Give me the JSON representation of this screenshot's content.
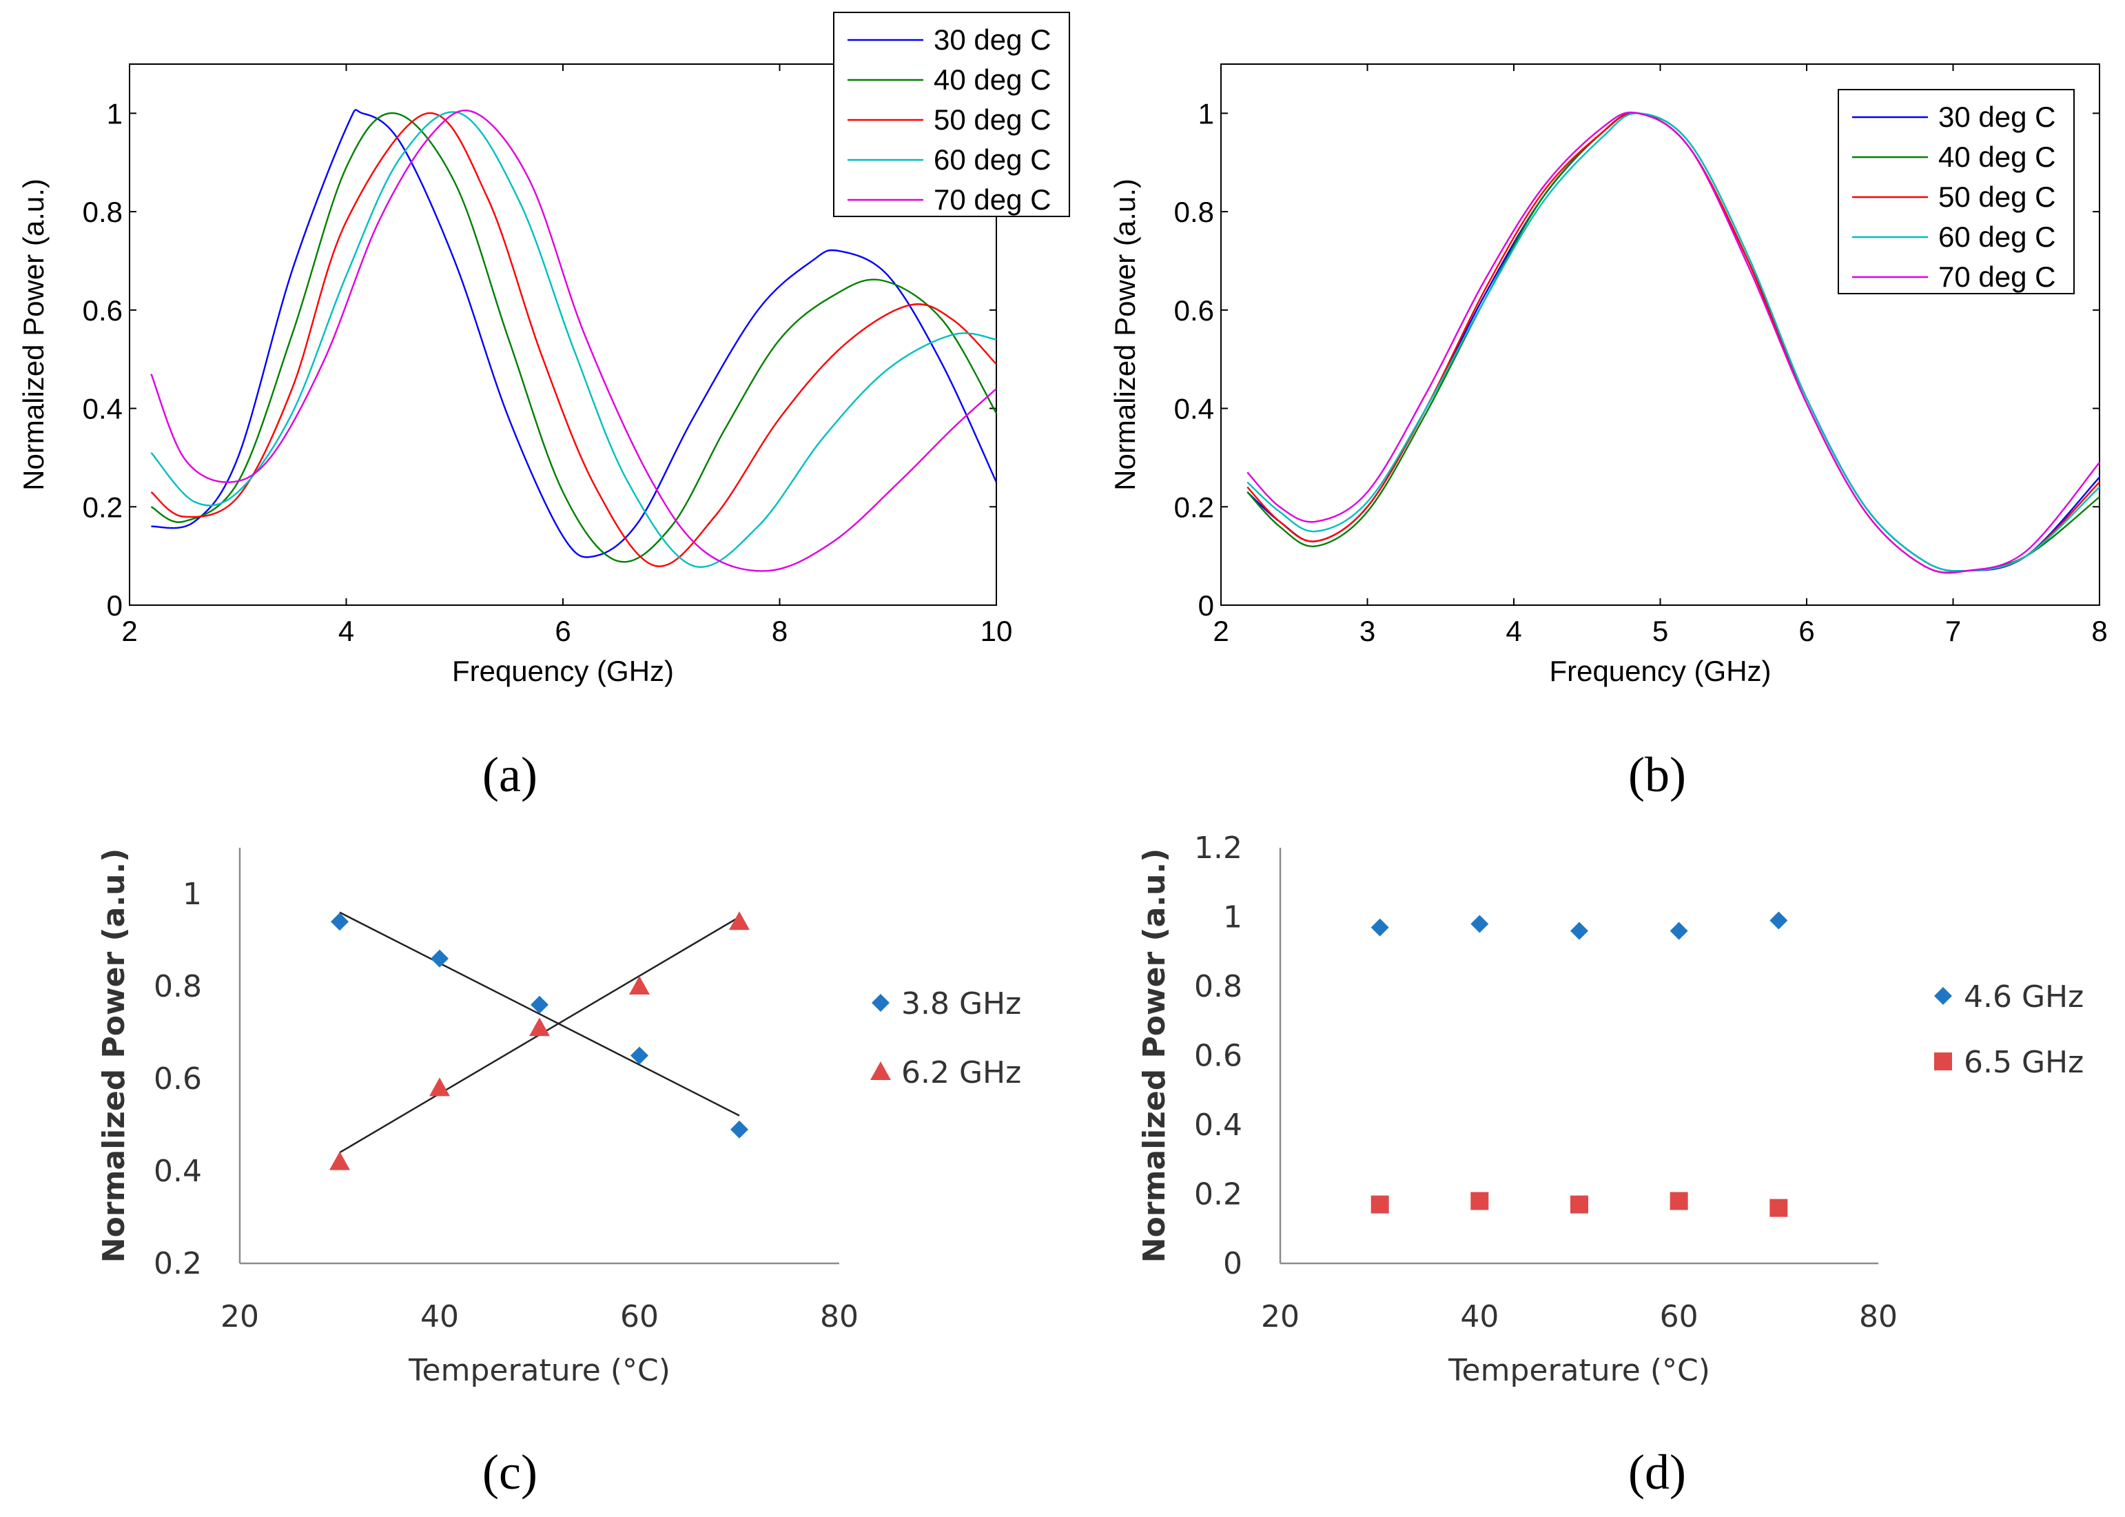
{
  "captions": [
    "(a)",
    "(b)",
    "(c)",
    "(d)"
  ],
  "chart_data": [
    {
      "id": "a",
      "type": "line",
      "title": "",
      "xlabel": "Frequency (GHz)",
      "ylabel": "Normalized Power (a.u.)",
      "xlim": [
        2,
        10
      ],
      "ylim": [
        0,
        1.1
      ],
      "xticks": [
        2,
        4,
        6,
        8,
        10
      ],
      "yticks": [
        0,
        0.2,
        0.4,
        0.6,
        0.8,
        1
      ],
      "legend_position": "top-right",
      "series": [
        {
          "name": "30 deg C",
          "color": "#0000ff",
          "x": [
            2.2,
            2.6,
            3.0,
            3.5,
            4.0,
            4.15,
            4.5,
            5.0,
            5.5,
            6.0,
            6.3,
            6.7,
            7.2,
            7.8,
            8.3,
            8.55,
            9.0,
            9.5,
            10.0
          ],
          "y": [
            0.16,
            0.17,
            0.3,
            0.68,
            0.97,
            1.0,
            0.94,
            0.7,
            0.38,
            0.14,
            0.1,
            0.17,
            0.38,
            0.6,
            0.7,
            0.72,
            0.67,
            0.49,
            0.25
          ]
        },
        {
          "name": "40 deg C",
          "color": "#008000",
          "x": [
            2.2,
            2.5,
            3.0,
            3.5,
            4.0,
            4.45,
            5.0,
            5.5,
            6.0,
            6.5,
            7.0,
            7.5,
            8.0,
            8.5,
            8.95,
            9.5,
            10.0
          ],
          "y": [
            0.2,
            0.17,
            0.25,
            0.55,
            0.89,
            1.0,
            0.86,
            0.54,
            0.23,
            0.09,
            0.16,
            0.36,
            0.54,
            0.63,
            0.66,
            0.58,
            0.39
          ]
        },
        {
          "name": "50 deg C",
          "color": "#ff0000",
          "x": [
            2.2,
            2.5,
            3.0,
            3.5,
            4.0,
            4.75,
            5.3,
            5.8,
            6.3,
            6.85,
            7.4,
            8.0,
            8.6,
            9.2,
            9.6,
            10.0
          ],
          "y": [
            0.23,
            0.18,
            0.22,
            0.44,
            0.78,
            1.0,
            0.83,
            0.51,
            0.24,
            0.08,
            0.18,
            0.38,
            0.53,
            0.61,
            0.58,
            0.49
          ]
        },
        {
          "name": "60 deg C",
          "color": "#00bfbf",
          "x": [
            2.2,
            2.6,
            3.0,
            3.5,
            4.0,
            4.5,
            5.05,
            5.6,
            6.1,
            6.6,
            7.2,
            7.8,
            8.4,
            9.0,
            9.6,
            10.0
          ],
          "y": [
            0.31,
            0.21,
            0.23,
            0.39,
            0.67,
            0.91,
            1.0,
            0.82,
            0.52,
            0.25,
            0.08,
            0.16,
            0.34,
            0.48,
            0.55,
            0.54
          ]
        },
        {
          "name": "70 deg C",
          "color": "#e000e0",
          "x": [
            2.2,
            2.5,
            2.9,
            3.3,
            3.8,
            4.3,
            4.8,
            5.2,
            5.7,
            6.2,
            6.8,
            7.3,
            7.9,
            8.5,
            9.1,
            9.6,
            10.0
          ],
          "y": [
            0.47,
            0.3,
            0.25,
            0.3,
            0.5,
            0.78,
            0.96,
            1.0,
            0.86,
            0.55,
            0.26,
            0.11,
            0.07,
            0.13,
            0.25,
            0.36,
            0.44
          ]
        }
      ]
    },
    {
      "id": "b",
      "type": "line",
      "title": "",
      "xlabel": "Frequency (GHz)",
      "ylabel": "Normalized Power (a.u.)",
      "xlim": [
        2,
        8
      ],
      "ylim": [
        0,
        1.1
      ],
      "xticks": [
        2,
        3,
        4,
        5,
        6,
        7,
        8
      ],
      "yticks": [
        0,
        0.2,
        0.4,
        0.6,
        0.8,
        1
      ],
      "legend_position": "top-right",
      "series": [
        {
          "name": "30 deg C",
          "color": "#0000ff",
          "x": [
            2.18,
            2.4,
            2.65,
            3.0,
            3.4,
            3.8,
            4.2,
            4.6,
            4.85,
            5.2,
            5.6,
            6.0,
            6.4,
            6.8,
            7.1,
            7.5,
            8.0
          ],
          "y": [
            0.23,
            0.17,
            0.13,
            0.2,
            0.4,
            0.63,
            0.83,
            0.96,
            1.0,
            0.93,
            0.7,
            0.42,
            0.2,
            0.09,
            0.07,
            0.1,
            0.26
          ]
        },
        {
          "name": "40 deg C",
          "color": "#008000",
          "x": [
            2.18,
            2.4,
            2.65,
            3.0,
            3.4,
            3.8,
            4.2,
            4.6,
            4.85,
            5.2,
            5.6,
            6.0,
            6.4,
            6.8,
            7.1,
            7.5,
            8.0
          ],
          "y": [
            0.23,
            0.16,
            0.12,
            0.19,
            0.39,
            0.62,
            0.83,
            0.96,
            1.0,
            0.94,
            0.71,
            0.42,
            0.2,
            0.09,
            0.07,
            0.1,
            0.22
          ]
        },
        {
          "name": "50 deg C",
          "color": "#ff0000",
          "x": [
            2.18,
            2.4,
            2.65,
            3.0,
            3.4,
            3.8,
            4.2,
            4.6,
            4.85,
            5.2,
            5.6,
            6.0,
            6.4,
            6.8,
            7.1,
            7.5,
            8.0
          ],
          "y": [
            0.24,
            0.17,
            0.13,
            0.2,
            0.4,
            0.64,
            0.84,
            0.96,
            1.0,
            0.93,
            0.7,
            0.41,
            0.19,
            0.08,
            0.07,
            0.1,
            0.25
          ]
        },
        {
          "name": "60 deg C",
          "color": "#00bfbf",
          "x": [
            2.18,
            2.4,
            2.65,
            3.0,
            3.4,
            3.8,
            4.2,
            4.6,
            4.85,
            5.2,
            5.6,
            6.0,
            6.4,
            6.8,
            7.1,
            7.5,
            8.0
          ],
          "y": [
            0.25,
            0.19,
            0.15,
            0.21,
            0.4,
            0.62,
            0.82,
            0.95,
            1.0,
            0.94,
            0.71,
            0.42,
            0.2,
            0.09,
            0.07,
            0.1,
            0.24
          ]
        },
        {
          "name": "70 deg C",
          "color": "#e000e0",
          "x": [
            2.18,
            2.4,
            2.65,
            3.0,
            3.4,
            3.8,
            4.2,
            4.6,
            4.85,
            5.2,
            5.6,
            6.0,
            6.4,
            6.8,
            7.1,
            7.5,
            8.0
          ],
          "y": [
            0.27,
            0.2,
            0.17,
            0.23,
            0.43,
            0.66,
            0.85,
            0.97,
            1.0,
            0.93,
            0.69,
            0.41,
            0.19,
            0.08,
            0.07,
            0.11,
            0.29
          ]
        }
      ]
    },
    {
      "id": "c",
      "type": "scatter",
      "title": "",
      "xlabel": "Temperature (°C)",
      "ylabel": "Normalized Power (a.u.)",
      "xlim": [
        20,
        80
      ],
      "ylim": [
        0.2,
        1.1
      ],
      "xticks": [
        20,
        40,
        60,
        80
      ],
      "yticks": [
        0.2,
        0.4,
        0.6,
        0.8,
        1
      ],
      "legend_position": "right",
      "series": [
        {
          "name": "3.8 GHz",
          "marker": "diamond",
          "color": "#1f77c4",
          "x": [
            30,
            40,
            50,
            60,
            70
          ],
          "y": [
            0.94,
            0.86,
            0.76,
            0.65,
            0.49
          ],
          "trend": [
            [
              30,
              0.96
            ],
            [
              70,
              0.52
            ]
          ]
        },
        {
          "name": "6.2 GHz",
          "marker": "triangle",
          "color": "#e04848",
          "x": [
            30,
            40,
            50,
            60,
            70
          ],
          "y": [
            0.42,
            0.58,
            0.71,
            0.8,
            0.94
          ],
          "trend": [
            [
              30,
              0.44
            ],
            [
              70,
              0.95
            ]
          ]
        }
      ]
    },
    {
      "id": "d",
      "type": "scatter",
      "title": "",
      "xlabel": "Temperature (°C)",
      "ylabel": "Normalized Power (a.u.)",
      "xlim": [
        20,
        80
      ],
      "ylim": [
        0,
        1.2
      ],
      "xticks": [
        20,
        40,
        60,
        80
      ],
      "yticks": [
        0,
        0.2,
        0.4,
        0.6,
        0.8,
        1,
        1.2
      ],
      "legend_position": "right",
      "series": [
        {
          "name": "4.6 GHz",
          "marker": "diamond",
          "color": "#1f77c4",
          "x": [
            30,
            40,
            50,
            60,
            70
          ],
          "y": [
            0.97,
            0.98,
            0.96,
            0.96,
            0.99
          ]
        },
        {
          "name": "6.5 GHz",
          "marker": "square",
          "color": "#e04848",
          "x": [
            30,
            40,
            50,
            60,
            70
          ],
          "y": [
            0.17,
            0.18,
            0.17,
            0.18,
            0.16
          ]
        }
      ]
    }
  ]
}
